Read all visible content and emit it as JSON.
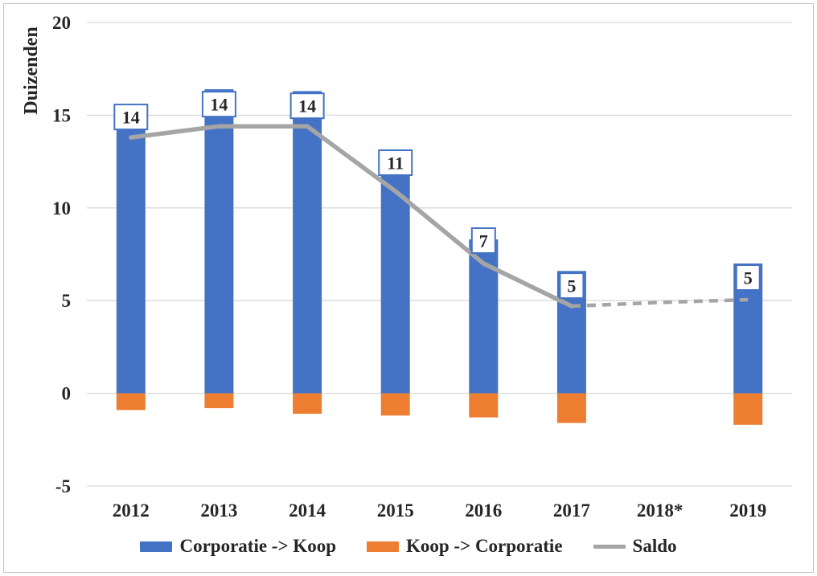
{
  "chart_data": {
    "type": "bar+line",
    "title": "",
    "y_axis_title": "Duizenden",
    "xlabel": "",
    "ylabel": "Duizenden",
    "categories": [
      "2012",
      "2013",
      "2014",
      "2015",
      "2016",
      "2017",
      "2018*",
      "2019"
    ],
    "y_ticks": [
      20,
      15,
      10,
      5,
      0,
      -5
    ],
    "ylim": [
      -5,
      20
    ],
    "grid": true,
    "legend_position": "bottom",
    "series": [
      {
        "name": "Corporatie -> Koop",
        "type": "bar",
        "color": "#4472C4",
        "values": [
          15.6,
          16.4,
          16.3,
          11.8,
          8.3,
          6.6,
          null,
          7.0
        ]
      },
      {
        "name": "Koop -> Corporatie",
        "type": "bar",
        "color": "#ED7D31",
        "values": [
          -0.9,
          -0.8,
          -1.1,
          -1.2,
          -1.3,
          -1.6,
          null,
          -1.7
        ]
      },
      {
        "name": "Saldo",
        "type": "line",
        "color": "#A5A5A5",
        "values": [
          13.8,
          14.4,
          14.4,
          10.9,
          7.0,
          4.7,
          4.9,
          5.05
        ],
        "dashed_from_index": 5,
        "data_labels": [
          "14",
          "14",
          "14",
          "11",
          "7",
          "5",
          null,
          "5"
        ],
        "label_box_border_color": "#4472C4"
      }
    ],
    "colors": {
      "gridline": "#D9D9D9",
      "text": "#262626",
      "frame_border": "#c2c2c2",
      "background": "#ffffff"
    }
  }
}
